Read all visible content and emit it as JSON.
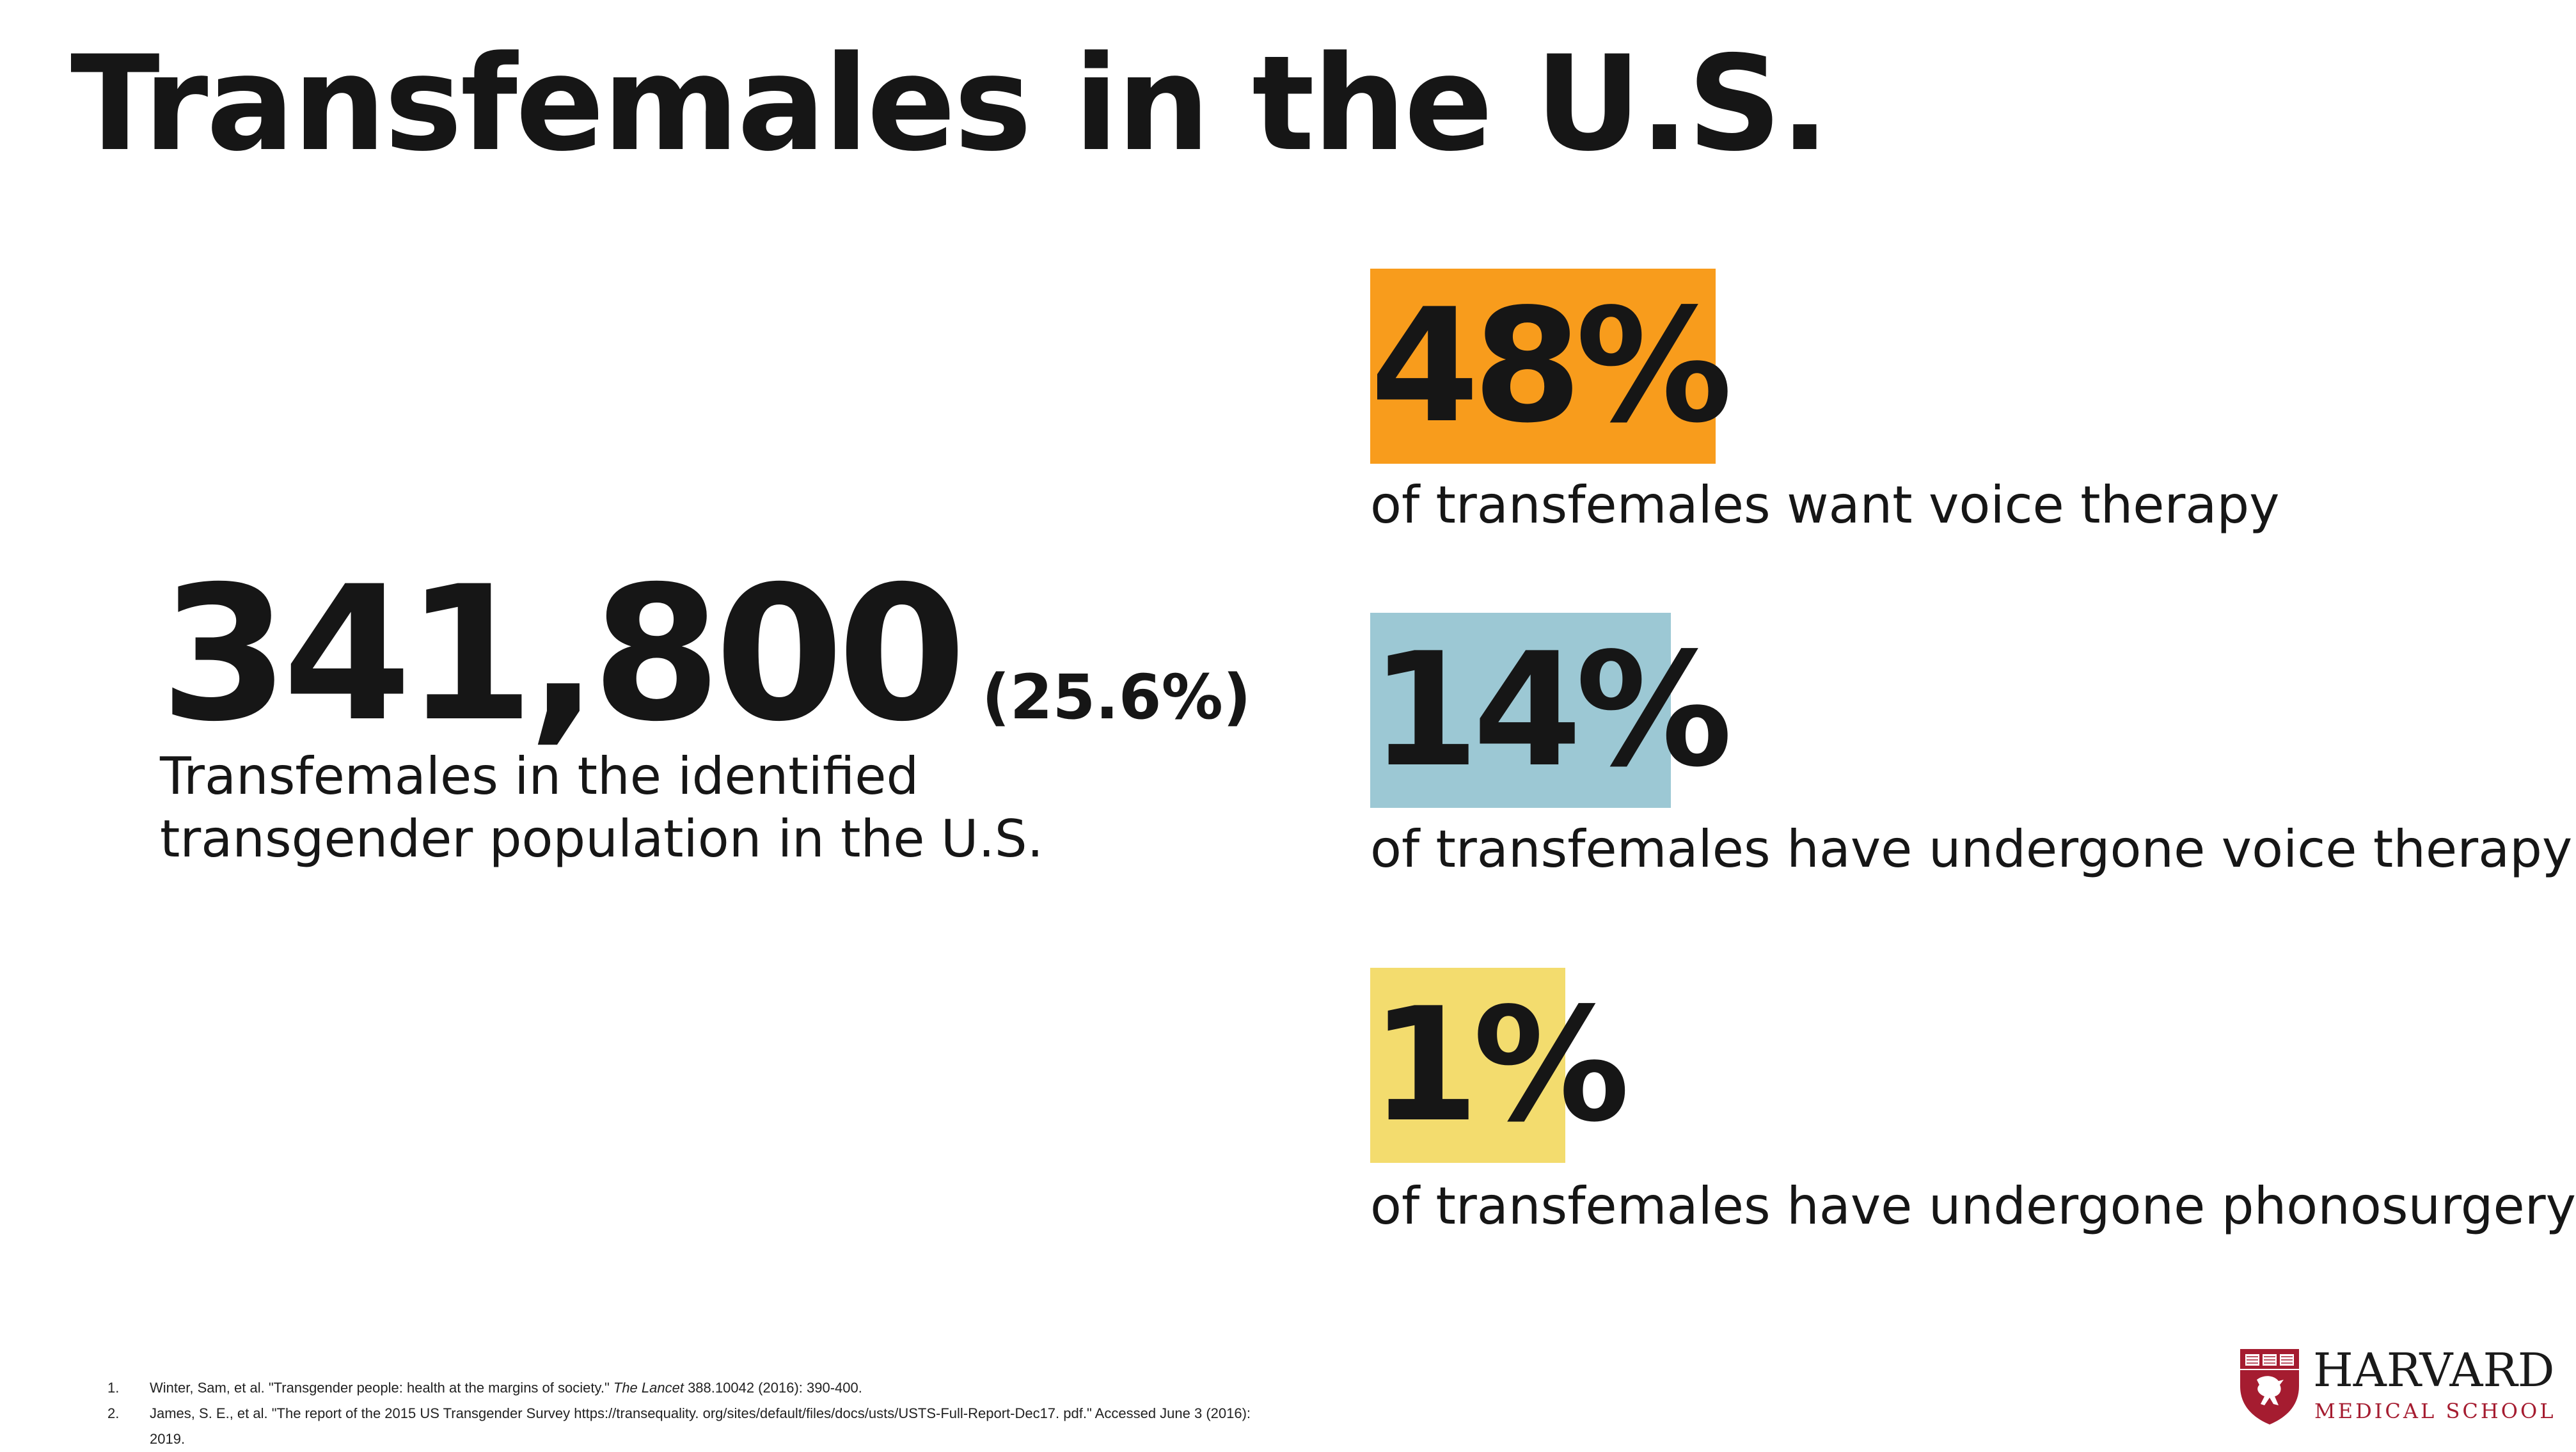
{
  "title": "Transfemales in the U.S.",
  "population": {
    "number": "341,800",
    "percent": "(25.6%)",
    "description": "Transfemales in the identified transgender population in the U.S."
  },
  "stats": [
    {
      "value": "48%",
      "description": "of transfemales want voice therapy",
      "color": "#f89c1c"
    },
    {
      "value": "14%",
      "description": "of transfemales have undergone voice therapy",
      "color": "#9cc8d4"
    },
    {
      "value": "1%",
      "description": "of transfemales have undergone phonosurgery",
      "color": "#f3dc6e"
    }
  ],
  "footnotes": [
    {
      "num": "1.",
      "before": "Winter, Sam, et al. \"Transgender people: health at the margins of society.\" ",
      "journal": "The Lancet",
      "after": " 388.10042 (2016): 390-400."
    },
    {
      "num": "2.",
      "before": "James, S. E., et al. \"The report of the 2015 US Transgender Survey https://transequality. org/sites/default/files/docs/usts/USTS-Full-Report-Dec17. pdf.\" Accessed June 3 (2016): 2019.",
      "journal": "",
      "after": ""
    }
  ],
  "logo": {
    "name": "HARVARD",
    "subtitle": "MEDICAL SCHOOL",
    "shield_color": "#a51c30"
  }
}
